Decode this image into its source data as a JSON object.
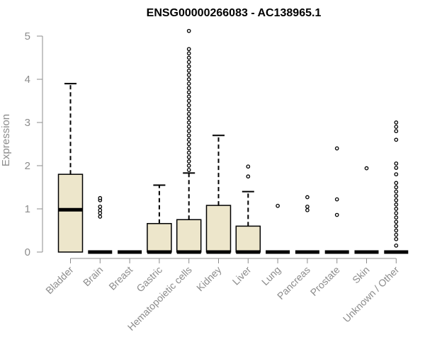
{
  "chart_data": {
    "type": "box",
    "title": "ENSG00000266083 - AC138965.1",
    "xlabel": "",
    "ylabel": "Expression",
    "ylim": [
      0,
      5
    ],
    "yticks": [
      0,
      1,
      2,
      3,
      4,
      5
    ],
    "box_color": "#ede6cb",
    "categories": [
      "Bladder",
      "Brain",
      "Breast",
      "Gastric",
      "Hematopoietic cells",
      "Kidney",
      "Liver",
      "Lung",
      "Pancreas",
      "Prostate",
      "Skin",
      "Unknown / Other"
    ],
    "boxes": [
      {
        "name": "Bladder",
        "min": 0,
        "q1": 0,
        "median": 0.98,
        "q3": 1.8,
        "max": 3.9,
        "outliers": []
      },
      {
        "name": "Brain",
        "min": 0,
        "q1": 0,
        "median": 0,
        "q3": 0,
        "max": 0,
        "outliers": [
          0.82,
          0.9,
          0.97,
          1.05,
          1.2,
          1.25
        ]
      },
      {
        "name": "Breast",
        "min": 0,
        "q1": 0,
        "median": 0,
        "q3": 0,
        "max": 0,
        "outliers": []
      },
      {
        "name": "Gastric",
        "min": 0,
        "q1": 0,
        "median": 0,
        "q3": 0.66,
        "max": 1.55,
        "outliers": []
      },
      {
        "name": "Hematopoietic cells",
        "min": 0,
        "q1": 0,
        "median": 0,
        "q3": 0.75,
        "max": 1.83,
        "outliers": [
          1.9,
          2.0,
          2.1,
          2.2,
          2.3,
          2.4,
          2.5,
          2.6,
          2.7,
          2.8,
          2.9,
          3.0,
          3.1,
          3.2,
          3.3,
          3.4,
          3.5,
          3.6,
          3.7,
          3.8,
          3.9,
          4.0,
          4.1,
          4.2,
          4.3,
          4.4,
          4.5,
          4.6,
          4.7,
          5.12
        ]
      },
      {
        "name": "Kidney",
        "min": 0,
        "q1": 0,
        "median": 0,
        "q3": 1.08,
        "max": 2.7,
        "outliers": []
      },
      {
        "name": "Liver",
        "min": 0,
        "q1": 0,
        "median": 0,
        "q3": 0.6,
        "max": 1.4,
        "outliers": [
          1.75,
          1.98
        ]
      },
      {
        "name": "Lung",
        "min": 0,
        "q1": 0,
        "median": 0,
        "q3": 0,
        "max": 0,
        "outliers": [
          1.07
        ]
      },
      {
        "name": "Pancreas",
        "min": 0,
        "q1": 0,
        "median": 0,
        "q3": 0,
        "max": 0,
        "outliers": [
          0.97,
          1.05,
          1.27
        ]
      },
      {
        "name": "Prostate",
        "min": 0,
        "q1": 0,
        "median": 0,
        "q3": 0,
        "max": 0,
        "outliers": [
          0.86,
          1.22,
          2.4
        ]
      },
      {
        "name": "Skin",
        "min": 0,
        "q1": 0,
        "median": 0,
        "q3": 0,
        "max": 0,
        "outliers": [
          1.94
        ]
      },
      {
        "name": "Unknown / Other",
        "min": 0,
        "q1": 0,
        "median": 0,
        "q3": 0,
        "max": 0,
        "outliers": [
          0.15,
          0.3,
          0.4,
          0.5,
          0.6,
          0.7,
          0.8,
          0.9,
          1.0,
          1.1,
          1.2,
          1.3,
          1.4,
          1.5,
          1.6,
          1.8,
          1.95,
          2.05,
          2.6,
          2.8,
          2.9,
          3.0
        ]
      }
    ]
  }
}
